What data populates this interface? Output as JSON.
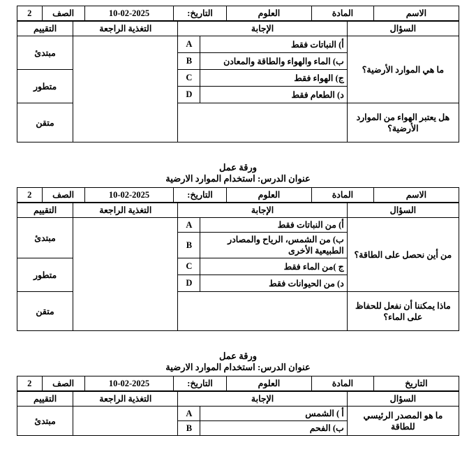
{
  "common": {
    "worksheet_label": "ورقة عمل",
    "lesson_prefix": "عنوان الدرس:",
    "lesson_title": "استخدام الموارد الارضية",
    "header": {
      "name": "الاسم",
      "subject": "المادة",
      "subject_value": "العلوم",
      "date": "التاريخ:",
      "date_value": "10-02-2025",
      "grade": "الصف",
      "grade_value": "2"
    },
    "colhead": {
      "question": "السؤال",
      "answer": "الإجابة",
      "feedback": "التغذية الراجعة",
      "evaluation": "التقييم"
    },
    "eval_levels": [
      "مبتدئ",
      "متطور",
      "متقن"
    ],
    "letters": [
      "A",
      "B",
      "C",
      "D"
    ]
  },
  "ws1": {
    "q_main": "ما هي الموارد الأرضية؟",
    "answers": [
      "أ) النباتات فقط",
      "ب) الماء والهواء والطاقة والمعادن",
      "ج) الهواء فقط",
      "د) الطعام فقط"
    ],
    "q_short": "هل يعتبر الهواء من الموارد الأرضية؟"
  },
  "ws2": {
    "q_main": "من أين نحصل على الطاقة؟",
    "answers": [
      "أ) من النباتات فقط",
      "ب) من الشمس، الرياح والمصادر الطبيعية الأخرى",
      "ج )من الماء فقط",
      "د) من الحيوانات فقط"
    ],
    "q_short": "ماذا يمكننا أن نفعل للحفاظ على الماء؟"
  },
  "ws3": {
    "header": {
      "date": "التاريخ"
    },
    "q_main": "ما هو المصدر الرئيسي للطاقة",
    "answers": [
      "أ ) الشمس",
      "ب) الفحم"
    ]
  }
}
